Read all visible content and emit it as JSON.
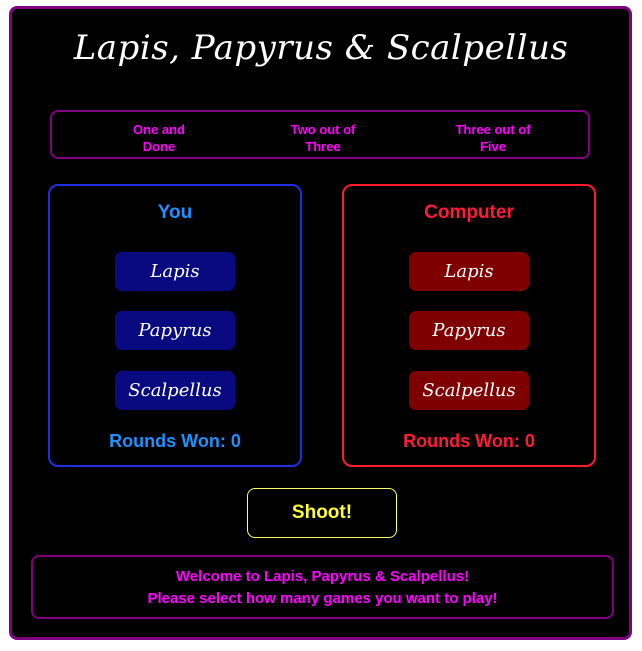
{
  "title": "Lapis, Papyrus & Scalpellus",
  "modes": [
    {
      "line1": "One and",
      "line2": "Done"
    },
    {
      "line1": "Two out of",
      "line2": "Three"
    },
    {
      "line1": "Three out of",
      "line2": "Five"
    }
  ],
  "player": {
    "title": "You",
    "choices": [
      "Lapis",
      "Papyrus",
      "Scalpellus"
    ],
    "rounds_won": "Rounds Won: 0"
  },
  "computer": {
    "title": "Computer",
    "choices": [
      "Lapis",
      "Papyrus",
      "Scalpellus"
    ],
    "rounds_won": "Rounds Won: 0"
  },
  "shoot_label": "Shoot!",
  "message": {
    "line1": "Welcome to Lapis, Papyrus & Scalpellus!",
    "line2": "Please select how many games you want to play!"
  },
  "colors": {
    "background": "#000000",
    "frame_border": "#800080",
    "accent_magenta": "#ff00ff",
    "player_blue": "#1e90ff",
    "player_button": "#0a0a80",
    "computer_red": "#ff1a3a",
    "computer_button": "#7f0000",
    "shoot_yellow": "#ffff33"
  }
}
